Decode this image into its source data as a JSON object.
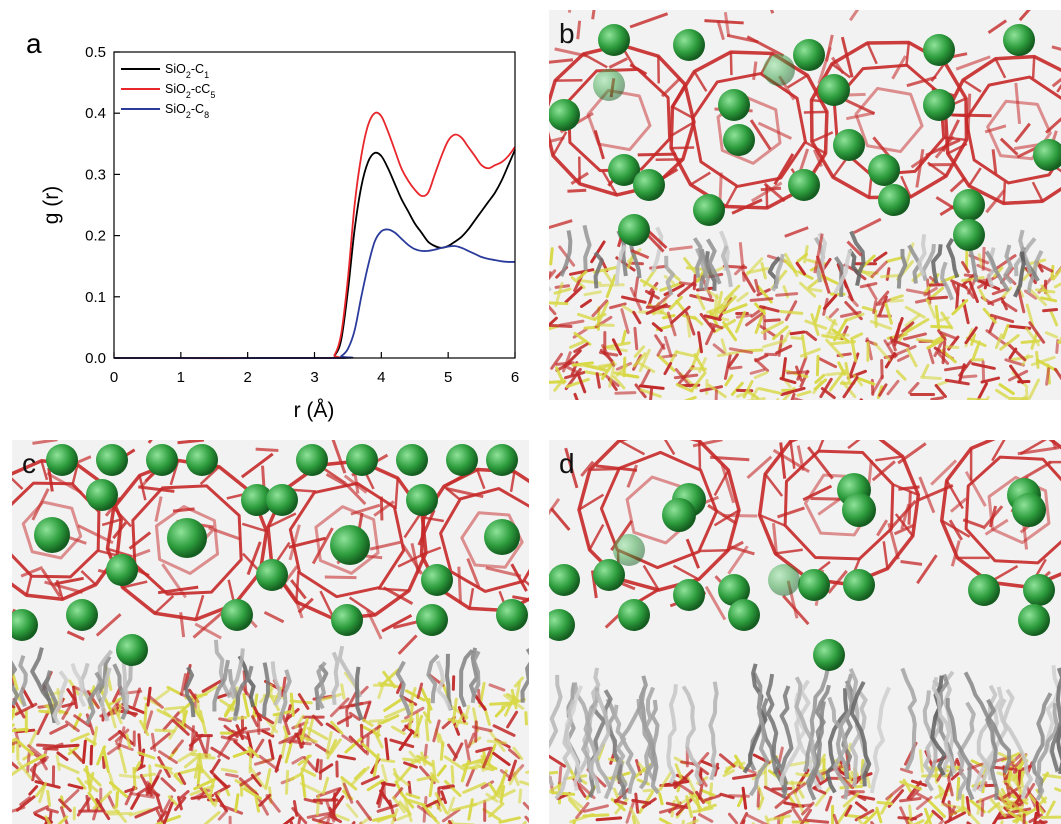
{
  "panels": {
    "a": "a",
    "b": "b",
    "c": "c",
    "d": "d"
  },
  "chart_data": {
    "type": "line",
    "xlabel": "r (Å)",
    "ylabel": "g (r)",
    "xlim": [
      0,
      6
    ],
    "ylim": [
      0,
      0.5
    ],
    "xticks": [
      "0",
      "1",
      "2",
      "3",
      "4",
      "5",
      "6"
    ],
    "yticks": [
      "0.0",
      "0.1",
      "0.2",
      "0.3",
      "0.4",
      "0.5"
    ],
    "grid": false,
    "legend_position": "top-left",
    "series": [
      {
        "name": "SiO2-C1",
        "legend": {
          "base": "SiO",
          "sub1": "2",
          "mid": "-C",
          "sub2": "1"
        },
        "color": "#000000",
        "x": [
          0,
          3.2,
          3.3,
          3.4,
          3.5,
          3.6,
          3.7,
          3.8,
          3.9,
          4.0,
          4.1,
          4.2,
          4.3,
          4.4,
          4.5,
          4.6,
          4.7,
          4.8,
          4.9,
          5.0,
          5.1,
          5.2,
          5.3,
          5.4,
          5.5,
          5.6,
          5.7,
          5.8,
          5.9,
          6.0
        ],
        "y": [
          0,
          0,
          0.004,
          0.03,
          0.11,
          0.21,
          0.28,
          0.32,
          0.335,
          0.33,
          0.31,
          0.285,
          0.26,
          0.24,
          0.22,
          0.205,
          0.19,
          0.183,
          0.18,
          0.183,
          0.19,
          0.198,
          0.21,
          0.225,
          0.24,
          0.255,
          0.27,
          0.29,
          0.315,
          0.34
        ]
      },
      {
        "name": "SiO2-cC5",
        "legend": {
          "base": "SiO",
          "sub1": "2",
          "mid": "-cC",
          "sub2": "5"
        },
        "color": "#e8262b",
        "x": [
          0,
          3.2,
          3.3,
          3.4,
          3.5,
          3.6,
          3.7,
          3.8,
          3.9,
          4.0,
          4.1,
          4.2,
          4.3,
          4.4,
          4.5,
          4.6,
          4.7,
          4.8,
          4.9,
          5.0,
          5.1,
          5.2,
          5.3,
          5.4,
          5.5,
          5.6,
          5.7,
          5.8,
          5.9,
          6.0
        ],
        "y": [
          0,
          0,
          0.005,
          0.04,
          0.13,
          0.25,
          0.33,
          0.38,
          0.4,
          0.395,
          0.37,
          0.34,
          0.31,
          0.29,
          0.275,
          0.265,
          0.27,
          0.3,
          0.33,
          0.355,
          0.365,
          0.36,
          0.345,
          0.33,
          0.315,
          0.31,
          0.315,
          0.32,
          0.33,
          0.345
        ]
      },
      {
        "name": "SiO2-C8",
        "legend": {
          "base": "SiO",
          "sub1": "2",
          "mid": "-C",
          "sub2": "8"
        },
        "color": "#2b3b9b",
        "x": [
          0,
          3.3,
          3.4,
          3.5,
          3.6,
          3.7,
          3.8,
          3.9,
          4.0,
          4.1,
          4.2,
          4.3,
          4.4,
          4.5,
          4.6,
          4.7,
          4.8,
          4.9,
          5.0,
          5.1,
          5.2,
          5.3,
          5.4,
          5.5,
          5.6,
          5.7,
          5.8,
          5.9,
          6.0
        ],
        "y": [
          0,
          0,
          0.003,
          0.015,
          0.045,
          0.1,
          0.15,
          0.19,
          0.207,
          0.21,
          0.205,
          0.195,
          0.185,
          0.178,
          0.175,
          0.175,
          0.177,
          0.18,
          0.182,
          0.183,
          0.18,
          0.175,
          0.17,
          0.165,
          0.162,
          0.16,
          0.158,
          0.157,
          0.157
        ]
      }
    ]
  },
  "scene_colors": {
    "framework": "#c62828",
    "methane": "#2e9e3e",
    "silica_si": "#d8d845",
    "silica_o": "#c22a2a",
    "alkyl": "#6a6a6a"
  }
}
